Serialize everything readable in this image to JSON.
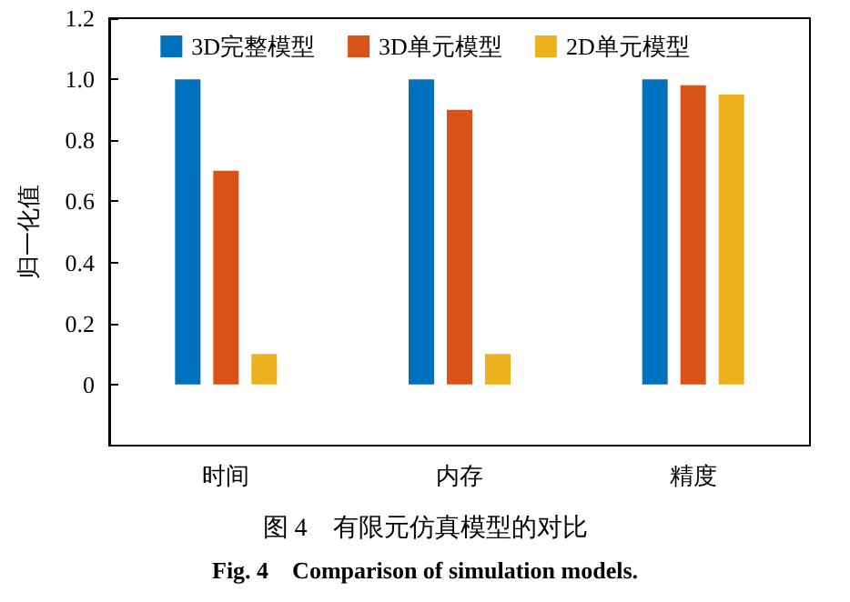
{
  "chart_data": {
    "type": "bar",
    "title": "图 4　有限元仿真模型的对比",
    "subtitle": "Fig. 4　Comparison of simulation models.",
    "ylabel": "归一化值",
    "categories": [
      "时间",
      "内存",
      "精度"
    ],
    "series": [
      {
        "name": "3D完整模型",
        "color": "#0072bd",
        "values": [
          1.0,
          1.0,
          1.0
        ]
      },
      {
        "name": "3D单元模型",
        "color": "#d95319",
        "values": [
          0.7,
          0.9,
          0.98
        ]
      },
      {
        "name": "2D单元模型",
        "color": "#edb120",
        "values": [
          0.1,
          0.1,
          0.95
        ]
      }
    ],
    "ylim": [
      -0.2,
      1.2
    ],
    "yticks": [
      0,
      0.2,
      0.4,
      0.6,
      0.8,
      {
        "value": 1,
        "label": "1.0"
      },
      1.2
    ],
    "grid": false,
    "legend": "top"
  }
}
